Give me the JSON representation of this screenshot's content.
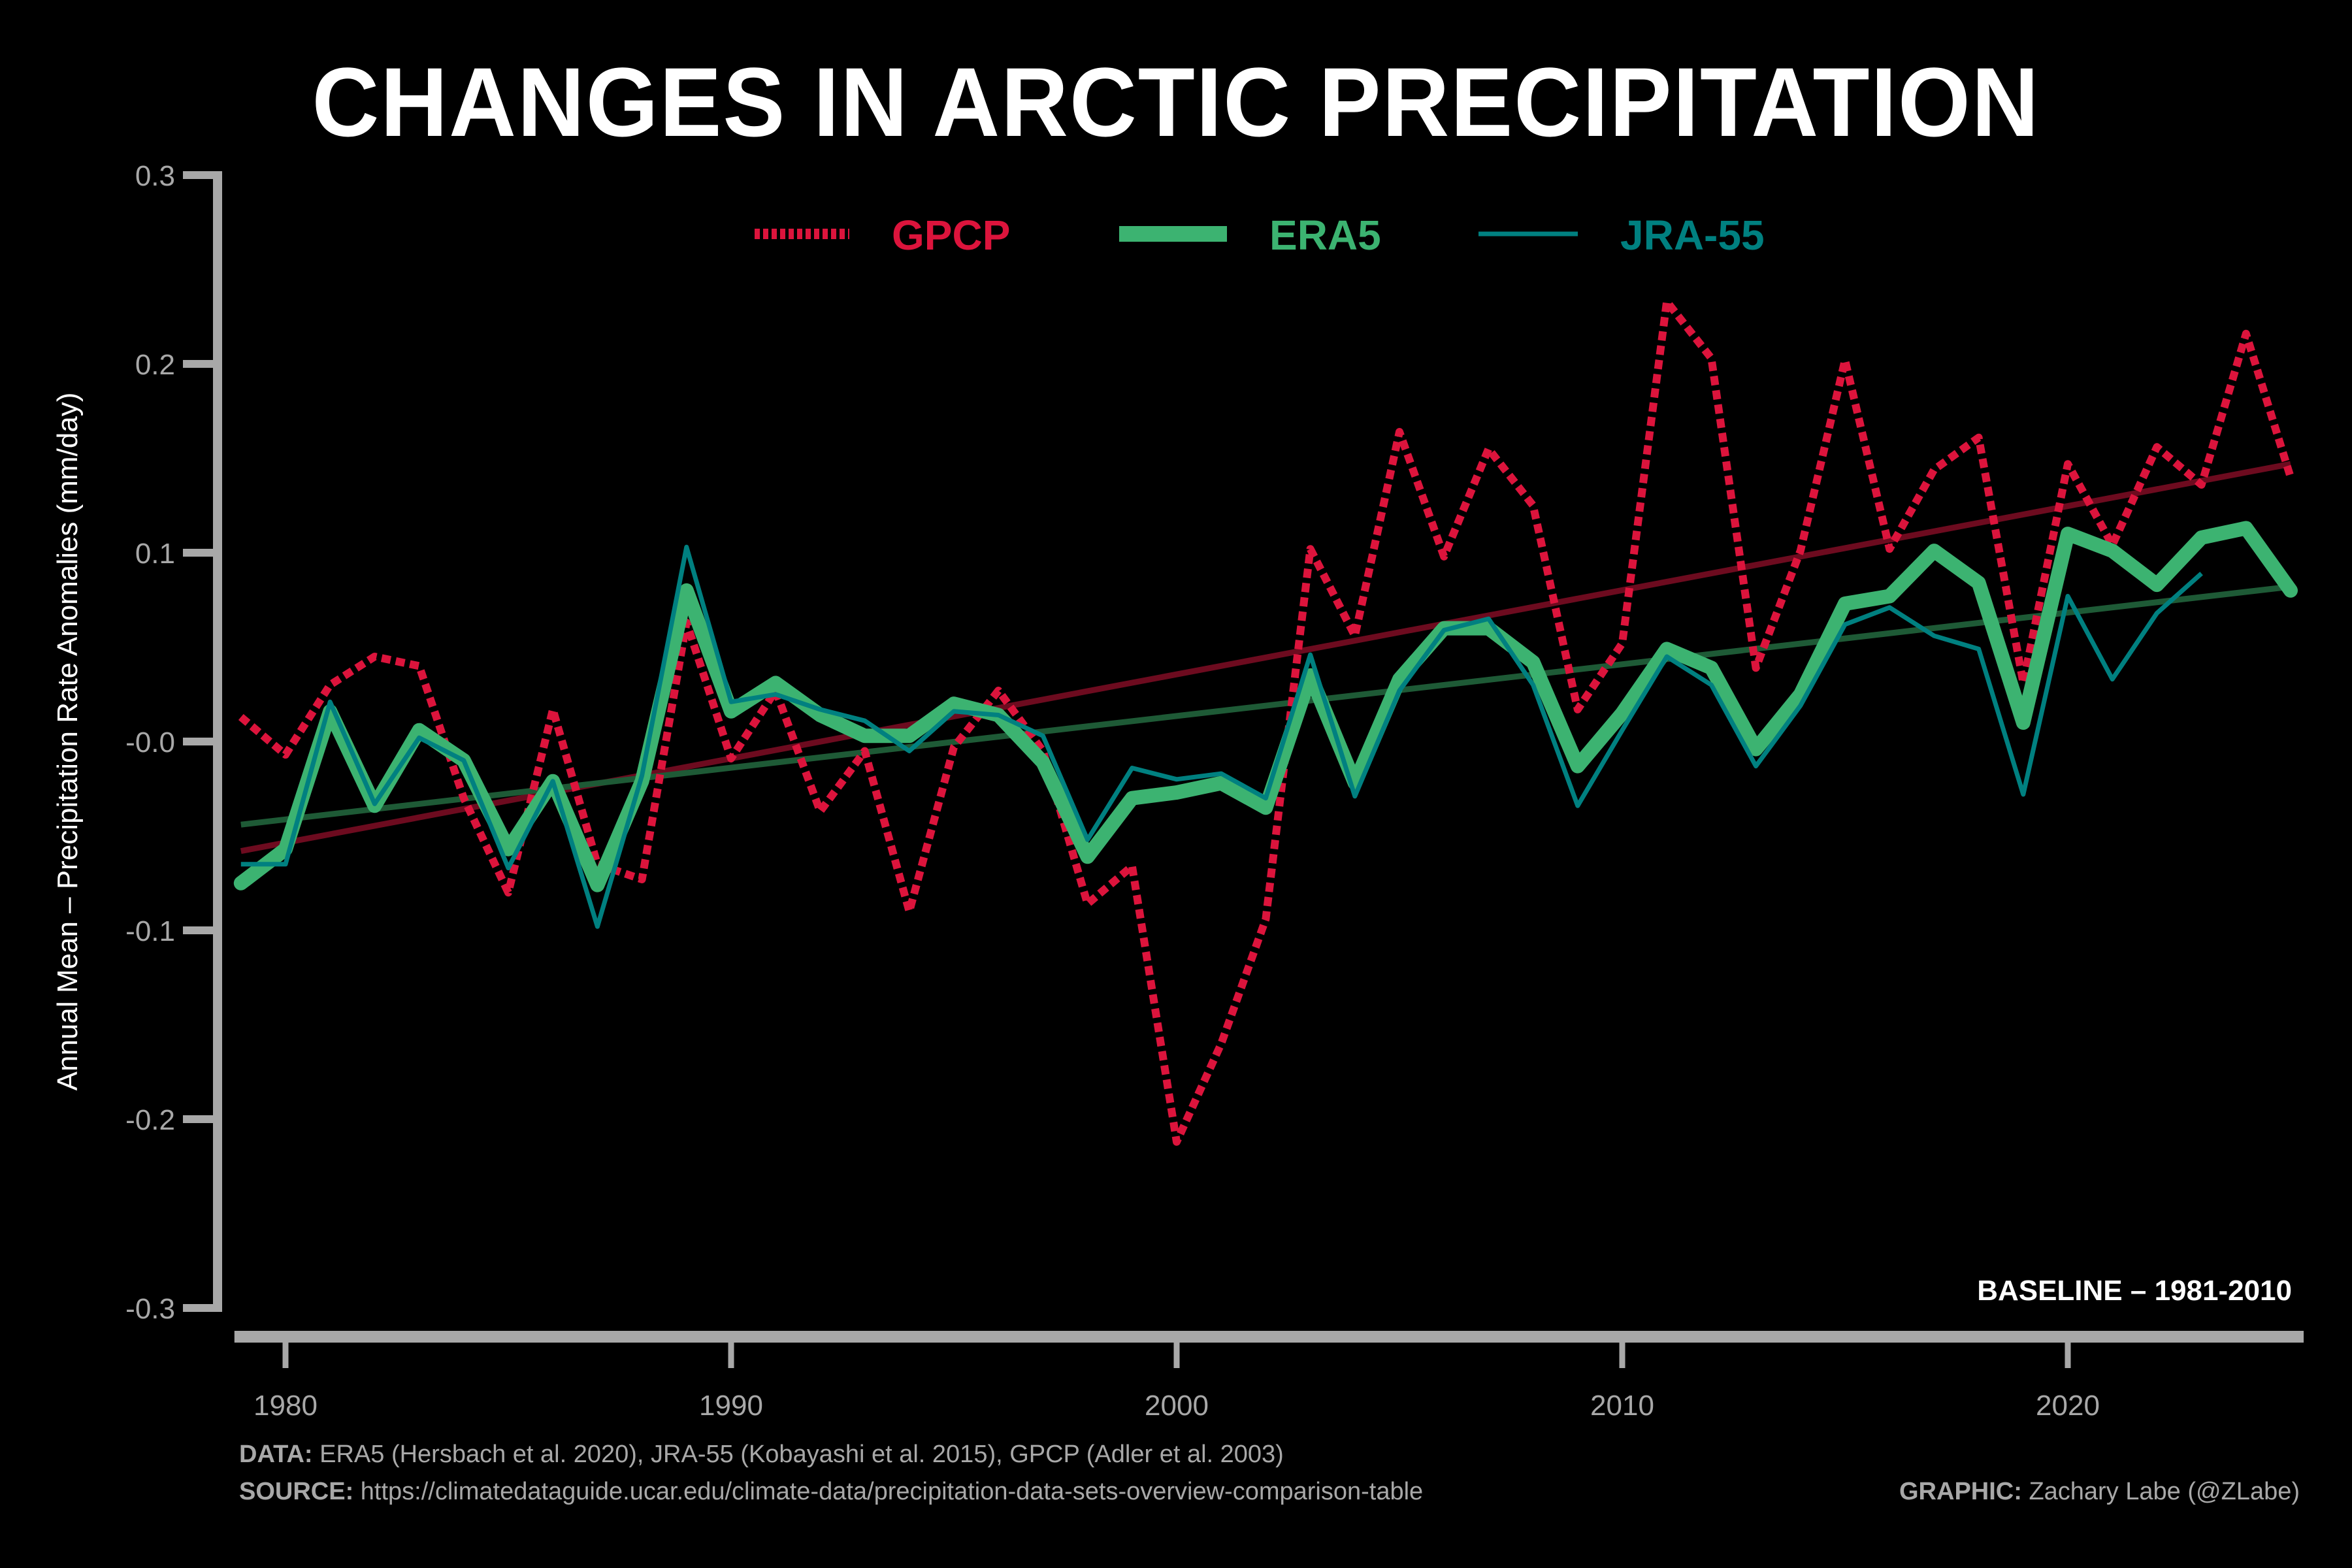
{
  "chart_data": {
    "type": "line",
    "title": "CHANGES IN ARCTIC PRECIPITATION",
    "xlabel": "",
    "ylabel": "Annual Mean – Precipitation Rate Anomalies (mm/day)",
    "xlim": [
      1979,
      2025
    ],
    "ylim": [
      -0.3,
      0.3
    ],
    "xticks": [
      1980,
      1990,
      2000,
      2010,
      2020
    ],
    "xtick_labels": [
      "1980",
      "1990",
      "2000",
      "2010",
      "2020"
    ],
    "yticks": [
      0.3,
      0.2,
      0.1,
      0.0,
      -0.1,
      -0.2,
      -0.3
    ],
    "ytick_labels": [
      "0.3",
      "0.2",
      "0.1",
      "-0.0",
      "-0.1",
      "-0.2",
      "-0.3"
    ],
    "grid": false,
    "legend_position": "top-center",
    "annotation": "BASELINE – 1981-2010",
    "series": [
      {
        "name": "GPCP",
        "color": "#dc143c",
        "style": "dotted",
        "start_year": 1979,
        "values": [
          0.013,
          -0.007,
          0.03,
          0.045,
          0.04,
          -0.03,
          -0.08,
          0.017,
          -0.065,
          -0.073,
          0.063,
          -0.009,
          0.027,
          -0.037,
          -0.005,
          -0.09,
          -0.003,
          0.027,
          -0.005,
          -0.086,
          -0.066,
          -0.212,
          -0.16,
          -0.094,
          0.102,
          0.056,
          0.164,
          0.098,
          0.155,
          0.125,
          0.017,
          0.052,
          0.233,
          0.203,
          0.039,
          0.101,
          0.202,
          0.102,
          0.144,
          0.161,
          0.031,
          0.147,
          0.104,
          0.156,
          0.136,
          0.216,
          0.14
        ],
        "trend": {
          "color": "#6d0b1f",
          "start": [
            1979,
            -0.058
          ],
          "end": [
            2025,
            0.147
          ]
        }
      },
      {
        "name": "ERA5",
        "color": "#3cb371",
        "style": "thick",
        "start_year": 1979,
        "values": [
          -0.075,
          -0.057,
          0.016,
          -0.034,
          0.006,
          -0.01,
          -0.057,
          -0.021,
          -0.076,
          -0.021,
          0.08,
          0.016,
          0.031,
          0.014,
          0.003,
          0.003,
          0.02,
          0.014,
          -0.011,
          -0.061,
          -0.03,
          -0.027,
          -0.022,
          -0.035,
          0.035,
          -0.022,
          0.033,
          0.06,
          0.06,
          0.042,
          -0.013,
          0.015,
          0.049,
          0.039,
          -0.004,
          0.025,
          0.073,
          0.077,
          0.101,
          0.084,
          0.01,
          0.11,
          0.101,
          0.083,
          0.108,
          0.113,
          0.08
        ],
        "trend": {
          "color": "#1e5a36",
          "start": [
            1979,
            -0.044
          ],
          "end": [
            2025,
            0.082
          ]
        }
      },
      {
        "name": "JRA-55",
        "color": "#008080",
        "style": "thin",
        "start_year": 1979,
        "values": [
          -0.065,
          -0.065,
          0.021,
          -0.033,
          0.002,
          -0.01,
          -0.067,
          -0.021,
          -0.098,
          -0.018,
          0.103,
          0.021,
          0.025,
          0.017,
          0.011,
          -0.005,
          0.016,
          0.014,
          0.003,
          -0.052,
          -0.014,
          -0.02,
          -0.017,
          -0.03,
          0.046,
          -0.029,
          0.027,
          0.059,
          0.065,
          0.03,
          -0.034,
          0.006,
          0.045,
          0.03,
          -0.013,
          0.019,
          0.062,
          0.071,
          0.056,
          0.049,
          -0.028,
          0.077,
          0.033,
          0.068,
          0.089
        ]
      }
    ]
  },
  "footer": {
    "data_label": "DATA:",
    "data_text": " ERA5 (Hersbach et al. 2020), JRA-55 (Kobayashi et al. 2015), GPCP (Adler et al. 2003)",
    "source_label": "SOURCE:",
    "source_text": " https://climatedataguide.ucar.edu/climate-data/precipitation-data-sets-overview-comparison-table",
    "graphic_label": "GRAPHIC:",
    "graphic_text": " Zachary Labe (@ZLabe)"
  }
}
